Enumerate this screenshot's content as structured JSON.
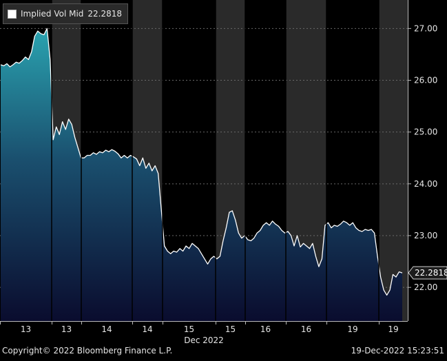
{
  "chart_data": {
    "type": "area",
    "title": "",
    "series": [
      {
        "name": "Implied Vol Mid",
        "last": "22.2818",
        "values": [
          26.3,
          26.28,
          26.32,
          26.26,
          26.3,
          26.35,
          26.33,
          26.38,
          26.45,
          26.4,
          26.55,
          26.85,
          26.95,
          26.9,
          26.88,
          27.0,
          26.4,
          24.85,
          25.1,
          24.95,
          25.2,
          25.05,
          25.25,
          25.15,
          24.9,
          24.7,
          24.5,
          24.5,
          24.55,
          24.55,
          24.6,
          24.57,
          24.62,
          24.6,
          24.65,
          24.62,
          24.66,
          24.63,
          24.58,
          24.5,
          24.55,
          24.5,
          24.55,
          24.52,
          24.48,
          24.35,
          24.5,
          24.3,
          24.4,
          24.25,
          24.35,
          24.2,
          23.5,
          22.8,
          22.7,
          22.65,
          22.7,
          22.68,
          22.75,
          22.7,
          22.8,
          22.75,
          22.85,
          22.8,
          22.75,
          22.65,
          22.55,
          22.45,
          22.55,
          22.6,
          22.55,
          22.6,
          22.9,
          23.15,
          23.45,
          23.48,
          23.3,
          23.05,
          22.95,
          23.0,
          22.92,
          22.9,
          22.95,
          23.05,
          23.1,
          23.2,
          23.25,
          23.2,
          23.28,
          23.22,
          23.18,
          23.1,
          23.05,
          23.08,
          23.0,
          22.8,
          23.0,
          22.78,
          22.85,
          22.8,
          22.75,
          22.85,
          22.6,
          22.4,
          22.55,
          23.2,
          23.25,
          23.15,
          23.2,
          23.18,
          23.22,
          23.28,
          23.25,
          23.2,
          23.25,
          23.15,
          23.1,
          23.08,
          23.12,
          23.1,
          23.12,
          23.05,
          22.6,
          22.2,
          21.95,
          21.85,
          21.95,
          22.25,
          22.2,
          22.3,
          22.28
        ]
      }
    ],
    "x_tick_labels": [
      "13",
      "13",
      "14",
      "14",
      "15",
      "15",
      "16",
      "16",
      "19",
      "19"
    ],
    "x_axis_label": "Dec 2022",
    "y_ticks": [
      "22.00",
      "23.00",
      "24.00",
      "25.00",
      "26.00",
      "27.00"
    ],
    "y_tick_values": [
      22,
      23,
      24,
      25,
      26,
      27
    ],
    "ylim": [
      21.35,
      27.55
    ],
    "session_shading": "alternating dark grey / black vertical bands",
    "grid": true,
    "legend_position": "top-left"
  },
  "footer": {
    "copyright": "Copyright© 2022 Bloomberg Finance L.P.",
    "timestamp": "19-Dec-2022 15:23:51"
  },
  "colors": {
    "background": "#000000",
    "shade_band": "#2a2a2a",
    "area_top": "#2aa3b0",
    "area_bottom": "#0a0c2e",
    "line": "#ffffff",
    "grid": "#6a6a6a"
  }
}
